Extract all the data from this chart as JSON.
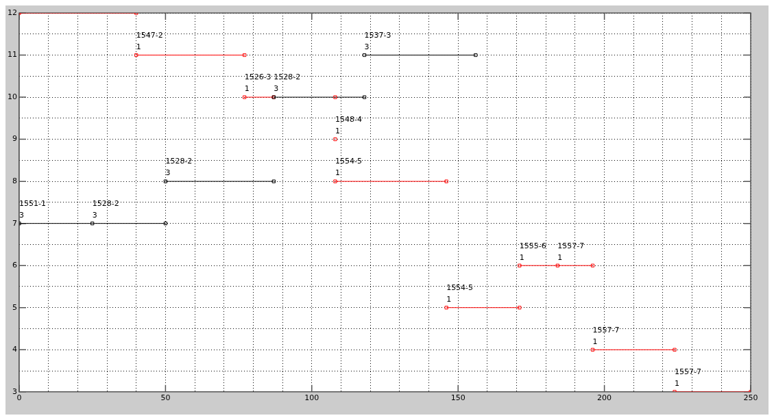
{
  "chart_data": {
    "type": "line",
    "marker": "square",
    "line_style": "solid",
    "grid": true,
    "legend": false,
    "xlim": [
      0,
      250
    ],
    "xticks": [
      0,
      {
        "value": 10,
        "label": null
      },
      {
        "value": 20,
        "label": null
      },
      {
        "value": 30,
        "label": null
      },
      {
        "value": 40,
        "label": null
      },
      50,
      {
        "value": 60,
        "label": null
      },
      {
        "value": 70,
        "label": null
      },
      {
        "value": 80,
        "label": null
      },
      {
        "value": 90,
        "label": null
      },
      100,
      {
        "value": 110,
        "label": null
      },
      {
        "value": 120,
        "label": null
      },
      {
        "value": 130,
        "label": null
      },
      {
        "value": 140,
        "label": null
      },
      150,
      {
        "value": 160,
        "label": null
      },
      {
        "value": 170,
        "label": null
      },
      {
        "value": 180,
        "label": null
      },
      {
        "value": 190,
        "label": null
      },
      200,
      {
        "value": 210,
        "label": null
      },
      {
        "value": 220,
        "label": null
      },
      {
        "value": 230,
        "label": null
      },
      {
        "value": 240,
        "label": null
      },
      250
    ],
    "ylim": [
      3,
      12
    ],
    "yticks": [
      3,
      {
        "value": 3.5,
        "label": null
      },
      4,
      {
        "value": 4.5,
        "label": null
      },
      5,
      {
        "value": 5.5,
        "label": null
      },
      6,
      {
        "value": 6.5,
        "label": null
      },
      7,
      {
        "value": 7.5,
        "label": null
      },
      8,
      {
        "value": 8.5,
        "label": null
      },
      9,
      {
        "value": 9.5,
        "label": null
      },
      10,
      {
        "value": 10.5,
        "label": null
      },
      11,
      {
        "value": 11.5,
        "label": null
      },
      12
    ],
    "series": [
      {
        "color": "#ff0000",
        "x": [
          0,
          40
        ],
        "values": [
          12,
          12
        ]
      },
      {
        "color": "#ff0000",
        "x": [
          40,
          77
        ],
        "values": [
          11,
          11
        ]
      },
      {
        "color": "#000000",
        "x": [
          118,
          156
        ],
        "values": [
          11,
          11
        ]
      },
      {
        "color": "#ff0000",
        "x": [
          77,
          87
        ],
        "values": [
          10,
          10
        ]
      },
      {
        "color": "#000000",
        "x": [
          87,
          118
        ],
        "values": [
          10,
          10
        ]
      },
      {
        "color": "#ff0000",
        "x": [
          108
        ],
        "values": [
          10
        ]
      },
      {
        "color": "#ff0000",
        "x": [
          108
        ],
        "values": [
          9
        ]
      },
      {
        "color": "#000000",
        "x": [
          50,
          87
        ],
        "values": [
          8,
          8
        ]
      },
      {
        "color": "#ff0000",
        "x": [
          108,
          146
        ],
        "values": [
          8,
          8
        ]
      },
      {
        "color": "#000000",
        "x": [
          0,
          25,
          50
        ],
        "values": [
          7,
          7,
          7
        ]
      },
      {
        "color": "#ff0000",
        "x": [
          171,
          184,
          196
        ],
        "values": [
          6,
          6,
          6
        ]
      },
      {
        "color": "#ff0000",
        "x": [
          146,
          171
        ],
        "values": [
          5,
          5
        ]
      },
      {
        "color": "#ff0000",
        "x": [
          196,
          224
        ],
        "values": [
          4,
          4
        ]
      },
      {
        "color": "#ff0000",
        "x": [
          224,
          250
        ],
        "values": [
          3,
          3
        ]
      }
    ],
    "annotations": [
      {
        "text": "1547-2\n1",
        "x": 40,
        "y": 11
      },
      {
        "text": "1537-3\n3",
        "x": 118,
        "y": 11
      },
      {
        "text": "1526-3\n1",
        "x": 77,
        "y": 10
      },
      {
        "text": "1528-2\n3",
        "x": 87,
        "y": 10
      },
      {
        "text": "1548-4\n1",
        "x": 108,
        "y": 9
      },
      {
        "text": "1528-2\n3",
        "x": 50,
        "y": 8
      },
      {
        "text": "1554-5\n1",
        "x": 108,
        "y": 8
      },
      {
        "text": "1551-1\n3",
        "x": 0,
        "y": 7
      },
      {
        "text": "1528-2\n3",
        "x": 25,
        "y": 7
      },
      {
        "text": "1555-6\n1",
        "x": 171,
        "y": 6
      },
      {
        "text": "1557-7\n1",
        "x": 184,
        "y": 6
      },
      {
        "text": "1554-5\n1",
        "x": 146,
        "y": 5
      },
      {
        "text": "1557-7\n1",
        "x": 196,
        "y": 4
      },
      {
        "text": "1557-7\n1",
        "x": 224,
        "y": 3
      }
    ]
  }
}
